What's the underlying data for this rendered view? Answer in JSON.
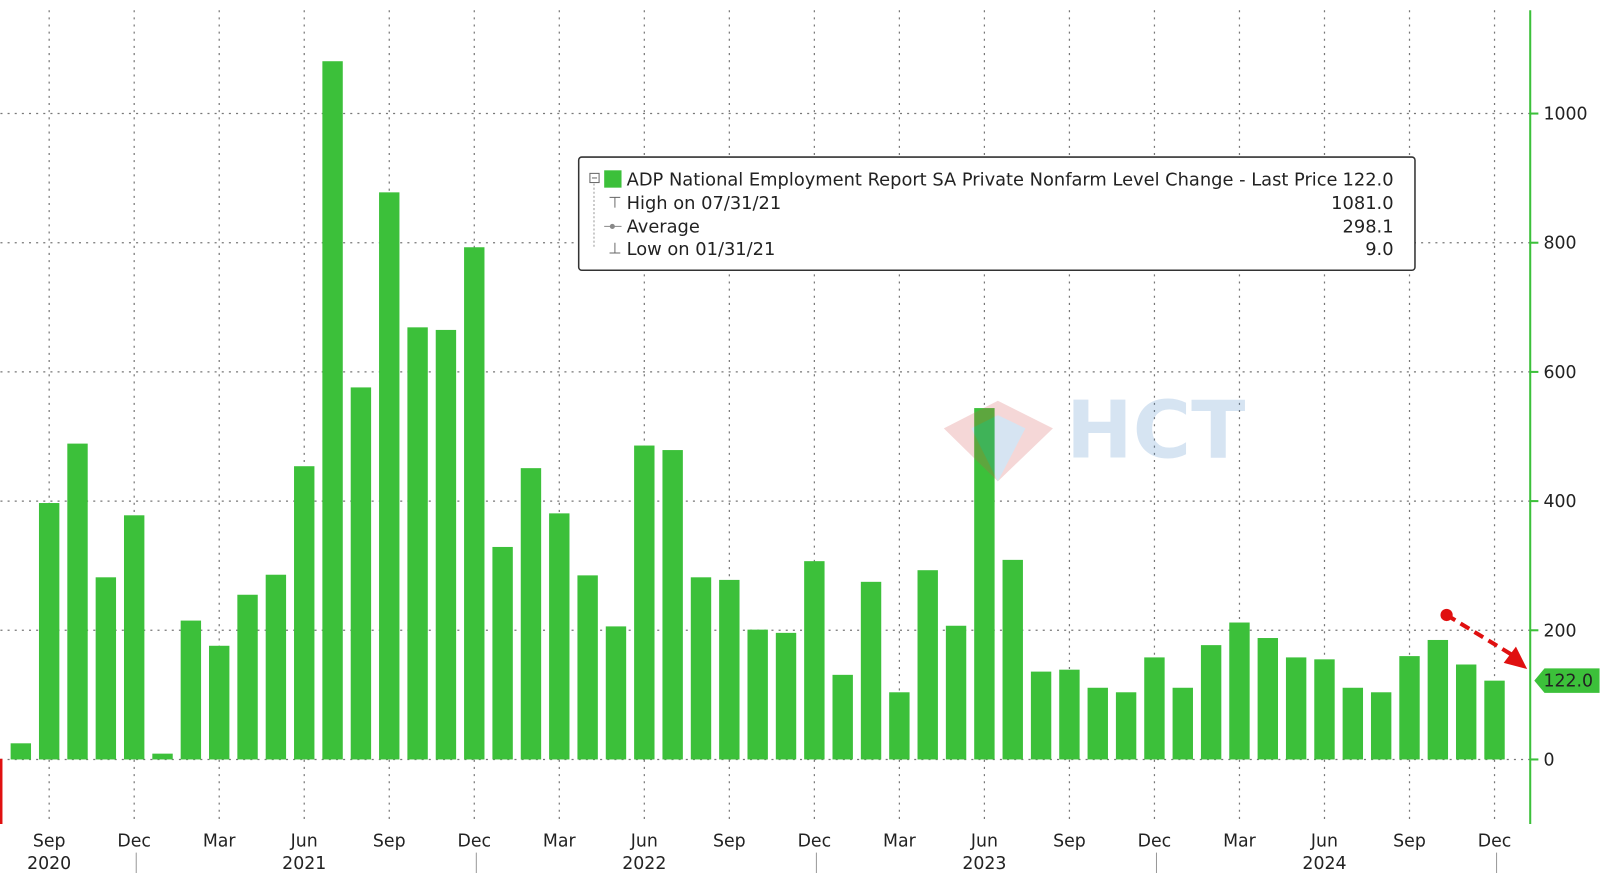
{
  "chart_data": {
    "type": "bar",
    "legend": {
      "series_name": "ADP National Employment Report SA Private Nonfarm Level Change - Last Price",
      "last_price": "122.0",
      "stats": [
        {
          "label": "High on 07/31/21",
          "value": "1081.0"
        },
        {
          "label": "Average",
          "value": "298.1"
        },
        {
          "label": "Low on 01/31/21",
          "value": "9.0"
        }
      ]
    },
    "watermark": "HCT",
    "categories": [
      null,
      "Sep",
      null,
      null,
      "Dec",
      null,
      null,
      "Mar",
      null,
      null,
      "Jun",
      null,
      null,
      "Sep",
      null,
      null,
      "Dec",
      null,
      null,
      "Mar",
      null,
      null,
      "Jun",
      null,
      null,
      "Sep",
      null,
      null,
      "Dec",
      null,
      null,
      "Mar",
      null,
      null,
      "Jun",
      null,
      null,
      "Sep",
      null,
      null,
      "Dec",
      null,
      null,
      "Mar",
      null,
      null,
      "Jun",
      null,
      null,
      "Sep",
      null,
      null,
      "Dec"
    ],
    "years": [
      null,
      "2020",
      null,
      null,
      null,
      null,
      null,
      null,
      null,
      null,
      "2021",
      null,
      null,
      null,
      null,
      null,
      null,
      null,
      null,
      null,
      null,
      null,
      "2022",
      null,
      null,
      null,
      null,
      null,
      null,
      null,
      null,
      null,
      null,
      null,
      "2023",
      null,
      null,
      null,
      null,
      null,
      null,
      null,
      null,
      null,
      null,
      null,
      "2024",
      null,
      null,
      null,
      null,
      null,
      null
    ],
    "series": [
      {
        "name": "ADP National Employment Report SA Private Nonfarm Level Change",
        "color": "#3cc03a",
        "values": [
          25,
          397,
          489,
          282,
          378,
          9,
          215,
          176,
          255,
          286,
          454,
          1081,
          576,
          878,
          669,
          665,
          793,
          329,
          451,
          381,
          285,
          206,
          486,
          479,
          282,
          278,
          201,
          196,
          307,
          131,
          275,
          104,
          293,
          207,
          544,
          309,
          136,
          139,
          111,
          104,
          158,
          111,
          177,
          212,
          188,
          158,
          155,
          111,
          104,
          160,
          185,
          147,
          122
        ],
        "value_labels": [
          null,
          null,
          null,
          null,
          null,
          null,
          null,
          null,
          null,
          null,
          null,
          null,
          null,
          null,
          null,
          null,
          null,
          null,
          null,
          null,
          null,
          null,
          null,
          null,
          null,
          null,
          null,
          null,
          null,
          null,
          null,
          null,
          null,
          null,
          null,
          null,
          null,
          null,
          null,
          null,
          null,
          null,
          null,
          null,
          null,
          null,
          null,
          null,
          null,
          null,
          null,
          null,
          "122.0"
        ]
      }
    ],
    "ylim": [
      -100,
      1160
    ],
    "yticks": [
      0,
      200,
      400,
      600,
      800,
      1000
    ],
    "grid": true,
    "axis_side": "right"
  }
}
